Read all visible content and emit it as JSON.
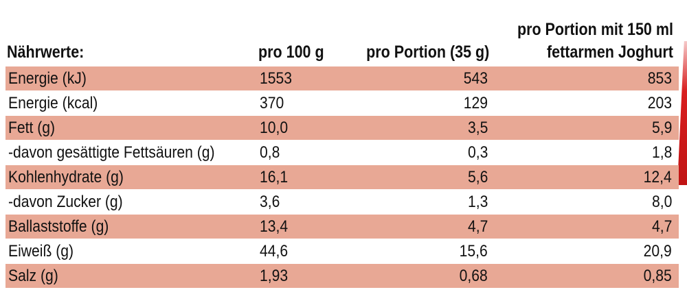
{
  "headers": {
    "label": "Nährwerte:",
    "per_100g": "pro 100 g",
    "per_portion": "pro Portion (35 g)",
    "per_portion_yogurt_line1": "pro Portion mit 150 ml",
    "per_portion_yogurt_line2": "fettarmen Joghurt"
  },
  "rows": [
    {
      "label": "Energie (kJ)",
      "per_100g": "1553",
      "per_portion": "543",
      "with_yogurt": "853"
    },
    {
      "label": "Energie (kcal)",
      "per_100g": "370",
      "per_portion": "129",
      "with_yogurt": "203"
    },
    {
      "label": "Fett (g)",
      "per_100g": "10,0",
      "per_portion": "3,5",
      "with_yogurt": "5,9"
    },
    {
      "label": "-davon gesättigte Fettsäuren (g)",
      "per_100g": "0,8",
      "per_portion": "0,3",
      "with_yogurt": "1,8"
    },
    {
      "label": "Kohlenhydrate (g)",
      "per_100g": "16,1",
      "per_portion": "5,6",
      "with_yogurt": "12,4"
    },
    {
      "label": "-davon Zucker (g)",
      "per_100g": "3,6",
      "per_portion": "1,3",
      "with_yogurt": "8,0"
    },
    {
      "label": "Ballaststoffe (g)",
      "per_100g": "13,4",
      "per_portion": "4,7",
      "with_yogurt": "4,7"
    },
    {
      "label": "Eiweiß (g)",
      "per_100g": "44,6",
      "per_portion": "15,6",
      "with_yogurt": "20,9"
    },
    {
      "label": "Salz (g)",
      "per_100g": "1,93",
      "per_portion": "0,68",
      "with_yogurt": "0,85"
    }
  ],
  "colors": {
    "shaded_row": "#e8a895",
    "accent_strip": "#d81e1e"
  }
}
